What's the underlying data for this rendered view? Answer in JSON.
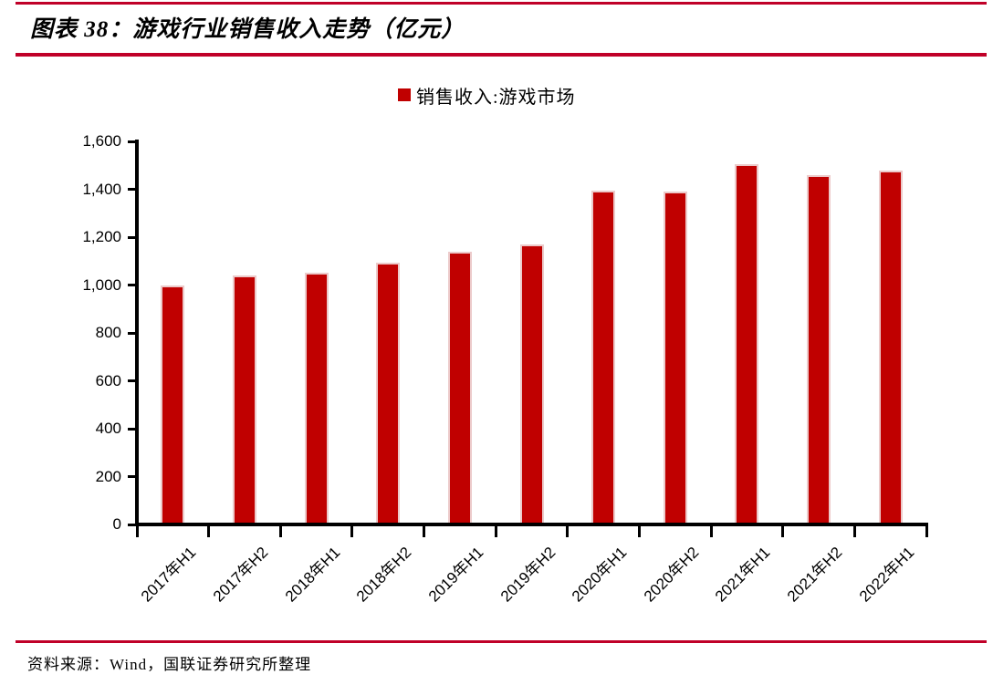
{
  "figure": {
    "title": "图表 38：游戏行业销售收入走势（亿元）",
    "source": "资料来源：Wind，国联证券研究所整理"
  },
  "legend": {
    "label": "销售收入:游戏市场",
    "marker_color": "#C00000"
  },
  "colors": {
    "bar": "#C00000",
    "bar_edge": "#ECCACA",
    "rule_red": "#C00028",
    "axis": "#000000",
    "text": "#000000"
  },
  "chart_data": {
    "type": "bar",
    "title": "图表 38：游戏行业销售收入走势（亿元）",
    "unit": "亿元",
    "legend_position": "top",
    "grid": false,
    "categories": [
      "2017年H1",
      "2017年H2",
      "2018年H1",
      "2018年H2",
      "2019年H1",
      "2019年H2",
      "2020年H1",
      "2020年H2",
      "2021年H1",
      "2021年H2",
      "2022年H1"
    ],
    "series": [
      {
        "name": "销售收入:游戏市场",
        "values": [
          997.8,
          1038.3,
          1050.0,
          1094.4,
          1140.2,
          1168.6,
          1394.9,
          1392.0,
          1504.9,
          1460.2,
          1477.9
        ]
      }
    ],
    "ylim": [
      0,
      1600
    ],
    "ytick_step": 200,
    "ytick_labels": [
      "0",
      "200",
      "400",
      "600",
      "800",
      "1,000",
      "1,200",
      "1,400",
      "1,600"
    ],
    "xlabel": "",
    "ylabel": "",
    "source": "资料来源：Wind，国联证券研究所整理"
  }
}
